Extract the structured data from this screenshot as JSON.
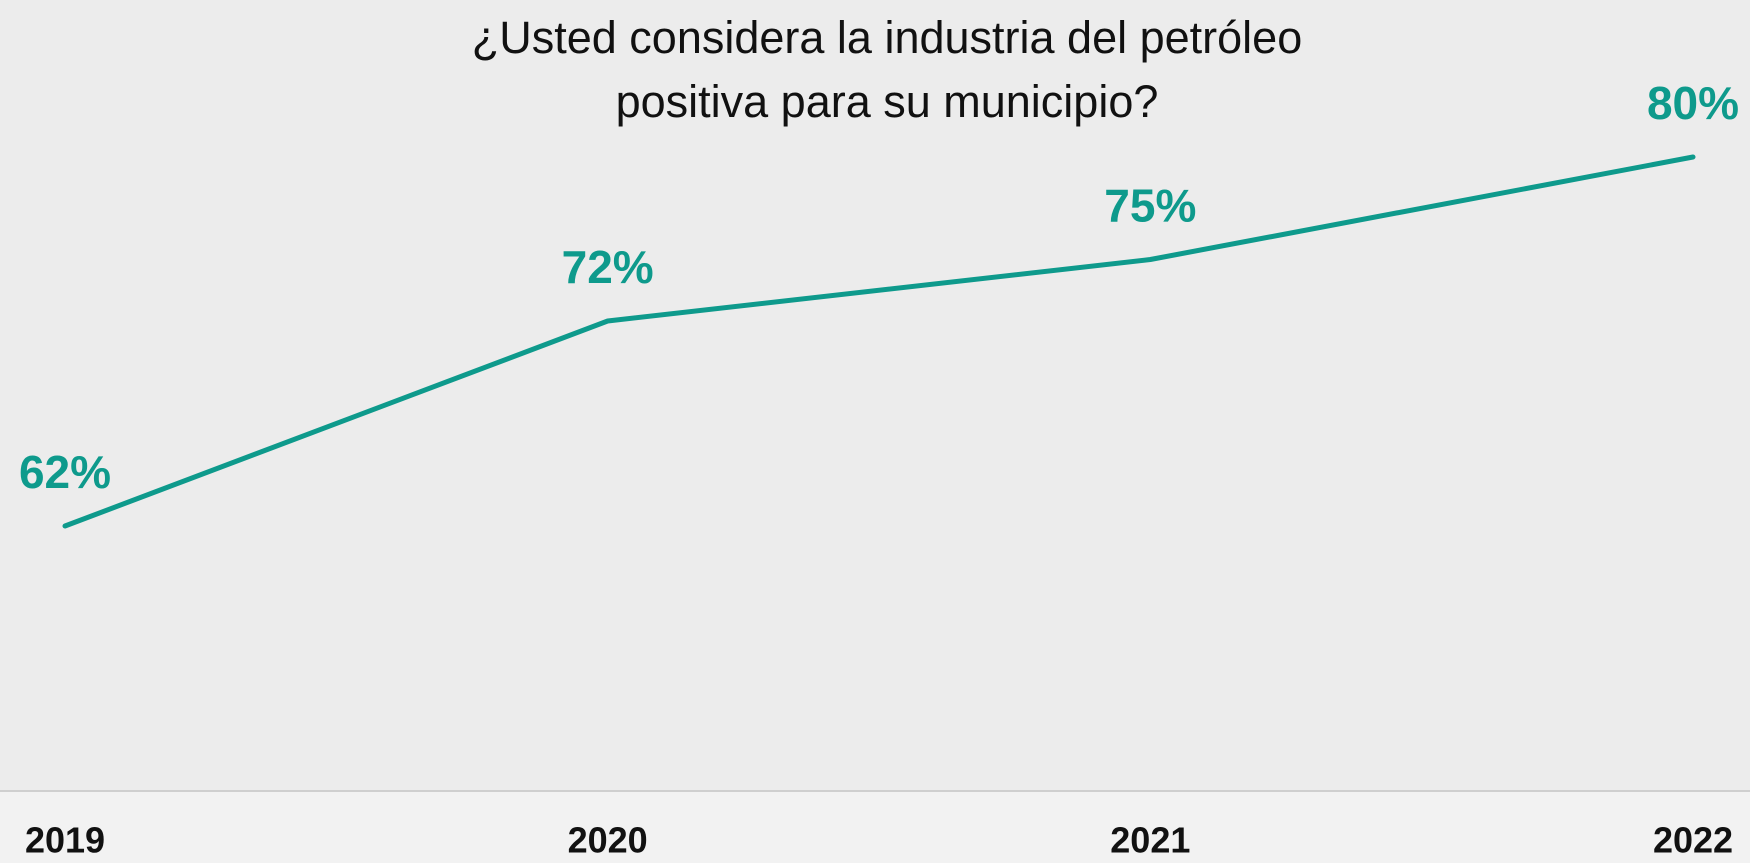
{
  "chart_data": {
    "type": "line",
    "title": "¿Usted considera la industria del petróleo positiva para su municipio?",
    "categories": [
      "2019",
      "2020",
      "2021",
      "2022"
    ],
    "series": [
      {
        "color": "#0e9a8c",
        "values": [
          62,
          72,
          75,
          80
        ],
        "value_labels": [
          "62%",
          "72%",
          "75%",
          "80%"
        ]
      }
    ]
  }
}
